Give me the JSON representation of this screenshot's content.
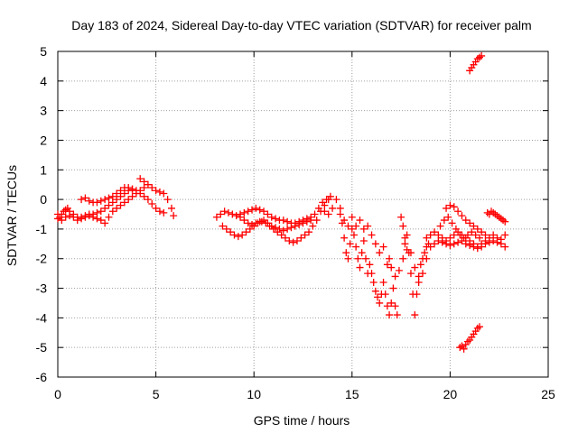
{
  "chart_data": {
    "type": "scatter",
    "title": "Day 183 of 2024, Sidereal Day-to-day VTEC variation (SDTVAR) for receiver palm",
    "xlabel": "GPS time / hours",
    "ylabel": "SDTVAR / TECUs",
    "xlim": [
      0,
      25
    ],
    "ylim": [
      -6,
      5
    ],
    "xticks": [
      0,
      5,
      10,
      15,
      20,
      25
    ],
    "yticks": [
      -6,
      -5,
      -4,
      -3,
      -2,
      -1,
      0,
      1,
      2,
      3,
      4,
      5
    ],
    "grid": true,
    "marker": "+",
    "series_color": "#ff0000",
    "series": [
      {
        "name": "SDTVAR",
        "points": [
          [
            0.0,
            -0.5
          ],
          [
            0.1,
            -0.6
          ],
          [
            0.2,
            -0.5
          ],
          [
            0.3,
            -0.4
          ],
          [
            0.4,
            -0.35
          ],
          [
            0.5,
            -0.3
          ],
          [
            0.6,
            -0.4
          ],
          [
            0.8,
            -0.5
          ],
          [
            1.0,
            -0.6
          ],
          [
            1.2,
            -0.6
          ],
          [
            1.4,
            -0.55
          ],
          [
            1.6,
            -0.5
          ],
          [
            1.8,
            -0.5
          ],
          [
            2.0,
            -0.45
          ],
          [
            2.2,
            -0.4
          ],
          [
            2.4,
            -0.3
          ],
          [
            2.6,
            -0.2
          ],
          [
            2.8,
            -0.1
          ],
          [
            3.0,
            0.0
          ],
          [
            3.2,
            0.1
          ],
          [
            3.4,
            0.2
          ],
          [
            3.6,
            0.3
          ],
          [
            3.8,
            0.35
          ],
          [
            4.0,
            0.3
          ],
          [
            4.2,
            0.2
          ],
          [
            4.4,
            0.1
          ],
          [
            4.6,
            0.0
          ],
          [
            4.8,
            -0.15
          ],
          [
            5.0,
            -0.3
          ],
          [
            5.2,
            -0.4
          ],
          [
            5.4,
            -0.45
          ],
          [
            0.0,
            -0.65
          ],
          [
            0.2,
            -0.7
          ],
          [
            0.4,
            -0.6
          ],
          [
            0.6,
            -0.55
          ],
          [
            0.8,
            -0.6
          ],
          [
            1.0,
            -0.7
          ],
          [
            1.2,
            -0.65
          ],
          [
            1.4,
            -0.6
          ],
          [
            1.6,
            -0.55
          ],
          [
            1.8,
            -0.6
          ],
          [
            2.0,
            -0.65
          ],
          [
            2.2,
            -0.7
          ],
          [
            1.2,
            0.0
          ],
          [
            1.4,
            0.05
          ],
          [
            1.6,
            -0.05
          ],
          [
            1.8,
            -0.1
          ],
          [
            2.0,
            -0.1
          ],
          [
            2.2,
            -0.05
          ],
          [
            2.4,
            0.0
          ],
          [
            2.6,
            0.05
          ],
          [
            2.8,
            0.1
          ],
          [
            3.0,
            0.2
          ],
          [
            3.2,
            0.3
          ],
          [
            3.4,
            0.4
          ],
          [
            3.6,
            0.4
          ],
          [
            3.8,
            0.35
          ],
          [
            2.4,
            -0.8
          ],
          [
            2.6,
            -0.6
          ],
          [
            2.8,
            -0.4
          ],
          [
            3.0,
            -0.3
          ],
          [
            3.2,
            -0.2
          ],
          [
            3.4,
            -0.1
          ],
          [
            3.6,
            0.0
          ],
          [
            3.8,
            0.1
          ],
          [
            4.0,
            0.2
          ],
          [
            4.2,
            0.3
          ],
          [
            4.4,
            0.4
          ],
          [
            4.2,
            0.7
          ],
          [
            4.4,
            0.6
          ],
          [
            4.6,
            0.5
          ],
          [
            4.8,
            0.4
          ],
          [
            5.0,
            0.3
          ],
          [
            5.2,
            0.25
          ],
          [
            5.4,
            0.2
          ],
          [
            5.6,
            0.0
          ],
          [
            5.8,
            -0.3
          ],
          [
            5.9,
            -0.55
          ],
          [
            8.1,
            -0.6
          ],
          [
            8.3,
            -0.5
          ],
          [
            8.5,
            -0.4
          ],
          [
            8.7,
            -0.45
          ],
          [
            8.9,
            -0.5
          ],
          [
            9.1,
            -0.55
          ],
          [
            9.3,
            -0.5
          ],
          [
            9.5,
            -0.45
          ],
          [
            9.7,
            -0.4
          ],
          [
            9.9,
            -0.35
          ],
          [
            10.1,
            -0.3
          ],
          [
            10.3,
            -0.35
          ],
          [
            10.5,
            -0.4
          ],
          [
            10.7,
            -0.5
          ],
          [
            10.9,
            -0.6
          ],
          [
            11.1,
            -0.65
          ],
          [
            11.3,
            -0.7
          ],
          [
            11.5,
            -0.7
          ],
          [
            11.7,
            -0.75
          ],
          [
            11.9,
            -0.8
          ],
          [
            12.1,
            -0.8
          ],
          [
            12.3,
            -0.75
          ],
          [
            12.5,
            -0.7
          ],
          [
            12.7,
            -0.65
          ],
          [
            12.9,
            -0.6
          ],
          [
            13.1,
            -0.5
          ],
          [
            13.3,
            -0.3
          ],
          [
            13.5,
            -0.1
          ],
          [
            13.7,
            0.0
          ],
          [
            13.9,
            0.1
          ],
          [
            8.4,
            -0.9
          ],
          [
            8.6,
            -1.0
          ],
          [
            8.8,
            -1.1
          ],
          [
            9.0,
            -1.2
          ],
          [
            9.2,
            -1.25
          ],
          [
            9.4,
            -1.2
          ],
          [
            9.6,
            -1.1
          ],
          [
            9.8,
            -1.0
          ],
          [
            10.0,
            -0.9
          ],
          [
            10.2,
            -0.8
          ],
          [
            10.4,
            -0.75
          ],
          [
            10.6,
            -0.8
          ],
          [
            10.8,
            -0.9
          ],
          [
            11.0,
            -1.0
          ],
          [
            11.2,
            -1.1
          ],
          [
            11.4,
            -1.2
          ],
          [
            11.6,
            -1.3
          ],
          [
            11.8,
            -1.4
          ],
          [
            12.0,
            -1.45
          ],
          [
            12.2,
            -1.4
          ],
          [
            12.4,
            -1.3
          ],
          [
            12.6,
            -1.2
          ],
          [
            12.8,
            -1.1
          ],
          [
            13.0,
            -0.9
          ],
          [
            13.2,
            -0.7
          ],
          [
            13.4,
            -0.4
          ],
          [
            13.6,
            -0.2
          ],
          [
            13.8,
            0.0
          ],
          [
            9.3,
            -0.6
          ],
          [
            9.5,
            -0.7
          ],
          [
            9.7,
            -0.8
          ],
          [
            9.9,
            -0.85
          ],
          [
            10.1,
            -0.8
          ],
          [
            10.3,
            -0.75
          ],
          [
            10.5,
            -0.7
          ],
          [
            10.7,
            -0.8
          ],
          [
            10.9,
            -0.9
          ],
          [
            11.1,
            -0.95
          ],
          [
            11.3,
            -1.0
          ],
          [
            11.5,
            -1.05
          ],
          [
            11.7,
            -1.0
          ],
          [
            11.9,
            -0.95
          ],
          [
            12.1,
            -0.9
          ],
          [
            12.3,
            -0.85
          ],
          [
            12.5,
            -0.8
          ],
          [
            12.7,
            -0.75
          ],
          [
            12.9,
            -0.7
          ],
          [
            13.6,
            -0.4
          ],
          [
            13.8,
            -0.5
          ],
          [
            14.0,
            -0.3
          ],
          [
            14.2,
            0.0
          ],
          [
            14.4,
            -0.3
          ],
          [
            14.5,
            -0.8
          ],
          [
            14.6,
            -1.3
          ],
          [
            14.7,
            -1.8
          ],
          [
            14.8,
            -2.0
          ],
          [
            14.9,
            -1.5
          ],
          [
            15.0,
            -1.0
          ],
          [
            15.1,
            -1.2
          ],
          [
            15.2,
            -1.6
          ],
          [
            15.3,
            -2.0
          ],
          [
            15.4,
            -2.3
          ],
          [
            15.5,
            -1.8
          ],
          [
            15.6,
            -1.4
          ],
          [
            15.7,
            -2.0
          ],
          [
            15.8,
            -2.5
          ],
          [
            15.9,
            -2.2
          ],
          [
            14.4,
            -0.5
          ],
          [
            14.6,
            -0.7
          ],
          [
            14.8,
            -0.9
          ],
          [
            15.0,
            -0.6
          ],
          [
            15.2,
            -0.9
          ],
          [
            15.4,
            -0.7
          ],
          [
            15.6,
            -1.0
          ],
          [
            15.8,
            -0.9
          ],
          [
            16.0,
            -1.2
          ],
          [
            16.2,
            -1.5
          ],
          [
            16.4,
            -1.8
          ],
          [
            16.6,
            -1.6
          ],
          [
            16.0,
            -2.5
          ],
          [
            16.1,
            -2.8
          ],
          [
            16.2,
            -3.1
          ],
          [
            16.3,
            -3.3
          ],
          [
            16.4,
            -3.5
          ],
          [
            16.5,
            -3.2
          ],
          [
            16.6,
            -2.8
          ],
          [
            16.7,
            -3.2
          ],
          [
            16.8,
            -3.6
          ],
          [
            16.9,
            -3.9
          ],
          [
            17.0,
            -3.5
          ],
          [
            17.1,
            -3.0
          ],
          [
            17.2,
            -3.6
          ],
          [
            17.3,
            -3.9
          ],
          [
            16.8,
            -2.2
          ],
          [
            16.9,
            -2.0
          ],
          [
            17.0,
            -2.3
          ],
          [
            17.2,
            -2.6
          ],
          [
            17.4,
            -2.4
          ],
          [
            17.6,
            -2.0
          ],
          [
            17.7,
            -1.5
          ],
          [
            17.8,
            -1.2
          ],
          [
            17.9,
            -1.8
          ],
          [
            18.0,
            -2.5
          ],
          [
            18.1,
            -3.2
          ],
          [
            18.2,
            -3.9
          ],
          [
            18.3,
            -3.2
          ],
          [
            18.4,
            -2.6
          ],
          [
            18.5,
            -2.2
          ],
          [
            18.6,
            -2.0
          ],
          [
            18.7,
            -1.8
          ],
          [
            18.8,
            -1.6
          ],
          [
            18.9,
            -1.5
          ],
          [
            17.5,
            -0.6
          ],
          [
            17.6,
            -0.9
          ],
          [
            17.7,
            -1.3
          ],
          [
            17.8,
            -1.7
          ],
          [
            18.0,
            -1.8
          ],
          [
            18.2,
            -2.3
          ],
          [
            18.4,
            -2.8
          ],
          [
            18.6,
            -2.5
          ],
          [
            18.8,
            -2.0
          ],
          [
            18.8,
            -1.3
          ],
          [
            19.0,
            -1.2
          ],
          [
            19.2,
            -1.1
          ],
          [
            19.4,
            -1.2
          ],
          [
            19.6,
            -1.3
          ],
          [
            19.8,
            -1.4
          ],
          [
            20.0,
            -1.3
          ],
          [
            20.2,
            -1.2
          ],
          [
            20.4,
            -1.1
          ],
          [
            20.6,
            -1.2
          ],
          [
            20.8,
            -1.3
          ],
          [
            21.0,
            -1.4
          ],
          [
            21.2,
            -1.5
          ],
          [
            21.4,
            -1.6
          ],
          [
            21.6,
            -1.5
          ],
          [
            21.8,
            -1.4
          ],
          [
            22.0,
            -1.3
          ],
          [
            22.2,
            -1.2
          ],
          [
            22.4,
            -1.3
          ],
          [
            22.6,
            -1.35
          ],
          [
            22.8,
            -1.2
          ],
          [
            19.0,
            -1.6
          ],
          [
            19.2,
            -1.5
          ],
          [
            19.4,
            -1.4
          ],
          [
            19.6,
            -1.45
          ],
          [
            19.8,
            -1.5
          ],
          [
            20.0,
            -1.55
          ],
          [
            20.2,
            -1.5
          ],
          [
            20.4,
            -1.45
          ],
          [
            20.6,
            -1.4
          ],
          [
            20.8,
            -1.5
          ],
          [
            21.0,
            -1.55
          ],
          [
            21.2,
            -1.6
          ],
          [
            21.4,
            -1.65
          ],
          [
            21.6,
            -1.6
          ],
          [
            21.8,
            -1.5
          ],
          [
            22.0,
            -1.45
          ],
          [
            22.2,
            -1.4
          ],
          [
            22.4,
            -1.45
          ],
          [
            22.6,
            -1.5
          ],
          [
            22.8,
            -1.6
          ],
          [
            19.8,
            -0.3
          ],
          [
            20.0,
            -0.2
          ],
          [
            20.2,
            -0.25
          ],
          [
            20.4,
            -0.4
          ],
          [
            20.6,
            -0.55
          ],
          [
            20.8,
            -0.7
          ],
          [
            21.0,
            -0.8
          ],
          [
            21.2,
            -0.9
          ],
          [
            21.4,
            -1.0
          ],
          [
            21.6,
            -1.1
          ],
          [
            21.8,
            -1.2
          ],
          [
            19.5,
            -0.9
          ],
          [
            19.7,
            -0.7
          ],
          [
            19.9,
            -0.6
          ],
          [
            20.1,
            -0.8
          ],
          [
            20.3,
            -1.0
          ],
          [
            20.5,
            -1.2
          ],
          [
            20.7,
            -1.3
          ],
          [
            20.9,
            -1.2
          ],
          [
            21.1,
            -1.1
          ],
          [
            21.3,
            -1.2
          ],
          [
            21.5,
            -1.3
          ],
          [
            21.9,
            -0.45
          ],
          [
            22.0,
            -0.5
          ],
          [
            22.1,
            -0.4
          ],
          [
            22.2,
            -0.45
          ],
          [
            22.3,
            -0.5
          ],
          [
            22.4,
            -0.55
          ],
          [
            22.5,
            -0.6
          ],
          [
            22.6,
            -0.65
          ],
          [
            22.7,
            -0.7
          ],
          [
            22.8,
            -0.75
          ],
          [
            20.5,
            -5.0
          ],
          [
            20.6,
            -4.95
          ],
          [
            20.7,
            -5.05
          ],
          [
            20.8,
            -4.9
          ],
          [
            20.9,
            -4.8
          ],
          [
            21.0,
            -4.75
          ],
          [
            21.1,
            -4.65
          ],
          [
            21.2,
            -4.55
          ],
          [
            21.3,
            -4.45
          ],
          [
            21.4,
            -4.35
          ],
          [
            21.5,
            -4.3
          ],
          [
            21.0,
            4.35
          ],
          [
            21.1,
            4.45
          ],
          [
            21.2,
            4.55
          ],
          [
            21.3,
            4.65
          ],
          [
            21.4,
            4.75
          ],
          [
            21.5,
            4.8
          ],
          [
            21.6,
            4.85
          ]
        ]
      }
    ]
  }
}
